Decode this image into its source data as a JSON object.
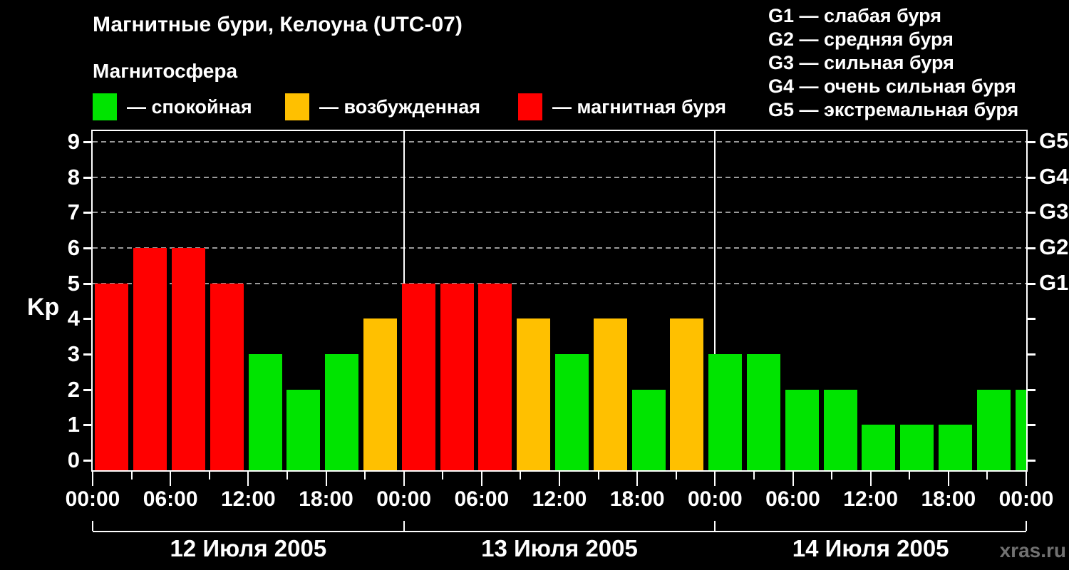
{
  "page": {
    "background": "#000000",
    "watermark": "xras.ru"
  },
  "header": {
    "title": "Магнитные бури, Келоуна (UTC-07)",
    "subtitle": "Магнитосфера",
    "legend": {
      "items": [
        {
          "key": "quiet",
          "label": "— спокойная",
          "color": "#00e400"
        },
        {
          "key": "active",
          "label": "— возбужденная",
          "color": "#ffc000"
        },
        {
          "key": "storm",
          "label": "— магнитная буря",
          "color": "#ff0000"
        }
      ]
    },
    "g_scale_legend": {
      "items": [
        "G1 — слабая буря",
        "G2 — средняя буря",
        "G3 — сильная буря",
        "G4 — очень сильная буря",
        "G5 — экстремальная буря"
      ]
    }
  },
  "chart_data": {
    "type": "bar",
    "title": "Магнитные бури, Келоуна (UTC-07)",
    "ylabel": "Kp",
    "ylim": [
      0,
      9.4
    ],
    "y_ticks": [
      0,
      1,
      2,
      3,
      4,
      5,
      6,
      7,
      8,
      9
    ],
    "grid_levels": [
      5,
      6,
      7,
      8,
      9
    ],
    "grid": "dashed horizontal lines at Kp 5..9 (G1..G5), day separators vertical",
    "legend_position": "top",
    "right_axis_labels": [
      {
        "kp": 5,
        "label": "G1"
      },
      {
        "kp": 6,
        "label": "G2"
      },
      {
        "kp": 7,
        "label": "G3"
      },
      {
        "kp": 8,
        "label": "G4"
      },
      {
        "kp": 9,
        "label": "G5"
      }
    ],
    "hours_per_bar": 3,
    "x_label_step_hours": 6,
    "x_label_cycle": [
      "00:00",
      "06:00",
      "12:00",
      "18:00"
    ],
    "days": [
      {
        "date": "12 Июля 2005",
        "kp": [
          5,
          6,
          6,
          5,
          3,
          2,
          3,
          4
        ]
      },
      {
        "date": "13 Июля 2005",
        "kp": [
          5,
          5,
          5,
          4,
          3,
          4,
          2,
          4
        ]
      },
      {
        "date": "14 Июля 2005",
        "kp": [
          3,
          3,
          2,
          2,
          1,
          1,
          1,
          2
        ]
      }
    ],
    "partial_next_bar_kp": 2,
    "bar_colors": {
      "quiet": "#00e400",
      "active": "#ffc000",
      "storm": "#ff0000"
    },
    "color_thresholds": {
      "quiet_max_kp": 3,
      "active_kp": 4,
      "storm_min_kp": 5
    }
  }
}
